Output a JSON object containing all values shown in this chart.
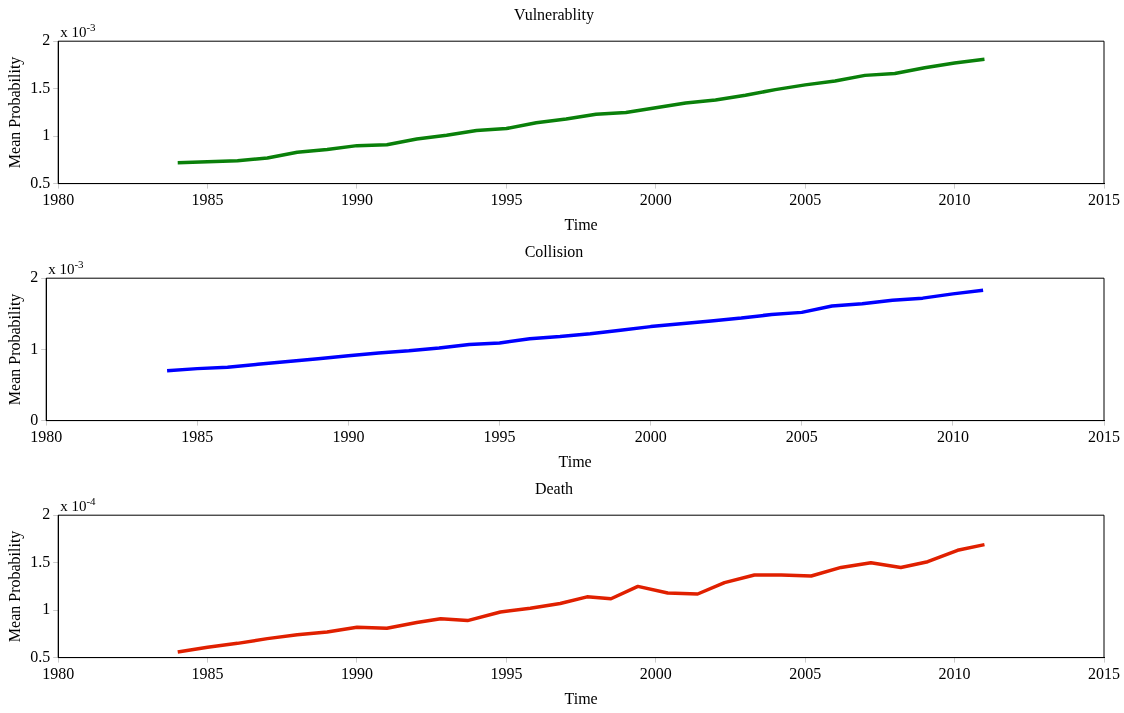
{
  "chart_data": [
    {
      "type": "line",
      "title": "Vulnerablity",
      "xlabel": "Time",
      "ylabel": "Mean Probability",
      "annotations": [
        "x 10$^{-3}$"
      ],
      "xlim": [
        1980,
        2015
      ],
      "xticks": [
        1980,
        1985,
        1990,
        1995,
        2000,
        2005,
        2010,
        2015
      ],
      "ylim": [
        0.5,
        2
      ],
      "yticks": [
        0.5,
        1,
        1.5,
        2
      ],
      "grid": false,
      "x": [
        1984,
        1985,
        1986,
        1987,
        1988,
        1989,
        1990,
        1991,
        1992,
        1993,
        1994,
        1995,
        1996,
        1997,
        1998,
        1999,
        2000,
        2001,
        2002,
        2003,
        2004,
        2005,
        2006,
        2007,
        2008,
        2009,
        2010,
        2011
      ],
      "series": [
        {
          "color": "#0a800a",
          "values": [
            0.72,
            0.73,
            0.74,
            0.77,
            0.83,
            0.86,
            0.9,
            0.91,
            0.97,
            1.01,
            1.06,
            1.08,
            1.14,
            1.18,
            1.23,
            1.25,
            1.3,
            1.35,
            1.38,
            1.43,
            1.49,
            1.54,
            1.58,
            1.64,
            1.66,
            1.72,
            1.77,
            1.81
          ]
        }
      ]
    },
    {
      "type": "line",
      "title": "Collision",
      "xlabel": "Time",
      "ylabel": "Mean Probability",
      "annotations": [
        "x 10$^{-3}$"
      ],
      "xlim": [
        1980,
        2015
      ],
      "xticks": [
        1980,
        1985,
        1990,
        1995,
        2000,
        2005,
        2010,
        2015
      ],
      "ylim": [
        0,
        2
      ],
      "yticks": [
        0,
        1,
        2
      ],
      "grid": false,
      "x": [
        1984,
        1985,
        1986,
        1987,
        1988,
        1989,
        1990,
        1991,
        1992,
        1993,
        1994,
        1995,
        1996,
        1997,
        1998,
        1999,
        2000,
        2001,
        2002,
        2003,
        2004,
        2005,
        2006,
        2007,
        2008,
        2009,
        2010,
        2011
      ],
      "series": [
        {
          "color": "#0000ff",
          "values": [
            0.7,
            0.73,
            0.75,
            0.79,
            0.83,
            0.87,
            0.91,
            0.95,
            0.98,
            1.02,
            1.07,
            1.09,
            1.15,
            1.18,
            1.22,
            1.27,
            1.32,
            1.36,
            1.4,
            1.44,
            1.49,
            1.52,
            1.61,
            1.64,
            1.69,
            1.72,
            1.78,
            1.83
          ]
        }
      ]
    },
    {
      "type": "line",
      "title": "Death",
      "xlabel": "Time",
      "ylabel": "Mean Probability",
      "annotations": [
        "x 10$^{-4}$"
      ],
      "xlim": [
        1980,
        2015
      ],
      "xticks": [
        1980,
        1985,
        1990,
        1995,
        2000,
        2005,
        2010,
        2015
      ],
      "ylim": [
        0.5,
        2
      ],
      "yticks": [
        0.5,
        1,
        1.5,
        2
      ],
      "grid": false,
      "series": [
        {
          "color": "#e02000",
          "x": [
            1984,
            1985,
            1986,
            1987,
            1988,
            1989,
            1990,
            1991,
            1992,
            1992.8,
            1993.7,
            1994.8,
            1995.8,
            1996.8,
            1997.7,
            1998.5,
            1999.4,
            2000.4,
            2001.4,
            2002.3,
            2003.3,
            2004.2,
            2005.2,
            2006.2,
            2007.2,
            2008.2,
            2009.1,
            2010.1,
            2011
          ],
          "values": [
            0.56,
            0.61,
            0.65,
            0.7,
            0.74,
            0.77,
            0.82,
            0.81,
            0.87,
            0.91,
            0.89,
            0.98,
            1.02,
            1.07,
            1.14,
            1.12,
            1.25,
            1.18,
            1.17,
            1.29,
            1.37,
            1.37,
            1.36,
            1.45,
            1.5,
            1.45,
            1.51,
            1.63,
            1.69
          ]
        }
      ]
    }
  ]
}
